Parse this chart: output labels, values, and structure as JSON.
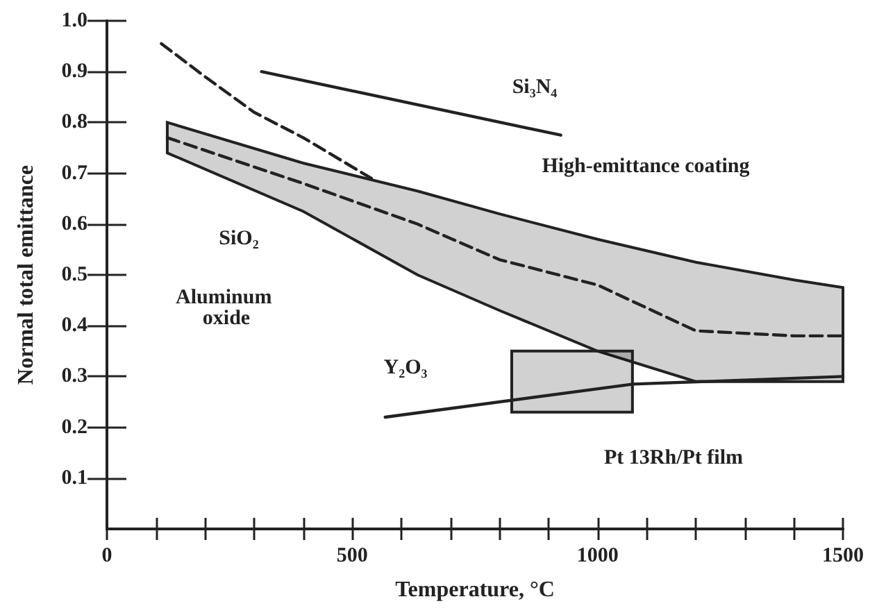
{
  "chart_data": {
    "type": "line",
    "xlabel": "Temperature, °C",
    "ylabel": "Normal total emittance",
    "xlim": [
      0,
      1500
    ],
    "ylim": [
      0,
      1
    ],
    "xticks": [
      0,
      {
        "value": 100,
        "label": null
      },
      {
        "value": 200,
        "label": null
      },
      {
        "value": 300,
        "label": null
      },
      {
        "value": 400,
        "label": null
      },
      500,
      {
        "value": 600,
        "label": null
      },
      {
        "value": 700,
        "label": null
      },
      {
        "value": 800,
        "label": null
      },
      {
        "value": 900,
        "label": null
      },
      1000,
      {
        "value": 1100,
        "label": null
      },
      {
        "value": 1200,
        "label": null
      },
      {
        "value": 1300,
        "label": null
      },
      {
        "value": 1400,
        "label": null
      },
      1500
    ],
    "yticks": [
      0.1,
      0.2,
      0.3,
      0.4,
      0.5,
      0.6,
      0.7,
      0.8,
      0.9,
      {
        "value": 1,
        "label": "1.0"
      }
    ],
    "grid": false,
    "marker": "none",
    "series": [
      {
        "color": "#222222",
        "line_style": "solid",
        "x": [
          315,
          925
        ],
        "values": [
          0.9,
          0.775
        ]
      },
      {
        "color": "#222222",
        "line_style": "dashed",
        "x": [
          111,
          200,
          300,
          400,
          539
        ],
        "values": [
          0.955,
          0.89,
          0.82,
          0.77,
          0.69
        ]
      },
      {
        "color": "#222222",
        "line_style": "dashed",
        "x": [
          123,
          400,
          633,
          800,
          1000,
          1200,
          1400,
          1500
        ],
        "values": [
          0.77,
          0.68,
          0.6,
          0.53,
          0.48,
          0.39,
          0.38,
          0.38
        ],
        "lower": [
          0.74,
          0.625,
          0.5,
          0.43,
          0.35,
          0.29,
          0.29,
          0.29
        ],
        "upper": [
          0.8,
          0.72,
          0.665,
          0.62,
          0.57,
          0.525,
          0.49,
          0.475
        ]
      },
      {
        "color": "#222222",
        "line_style": "solid",
        "x": [
          825,
          1071
        ],
        "values": [
          null,
          null
        ],
        "lower": [
          0.23,
          0.23
        ],
        "upper": [
          0.35,
          0.35
        ]
      },
      {
        "color": "#222222",
        "line_style": "solid",
        "x": [
          567,
          1072,
          1500
        ],
        "values": [
          0.22,
          0.285,
          0.3
        ]
      }
    ],
    "annotations": [
      "Si₃N₄",
      "High-emittance coating",
      "SiO₂",
      "Aluminum oxide",
      "Y₂O₃",
      "Pt 13Rh/Pt film"
    ]
  }
}
